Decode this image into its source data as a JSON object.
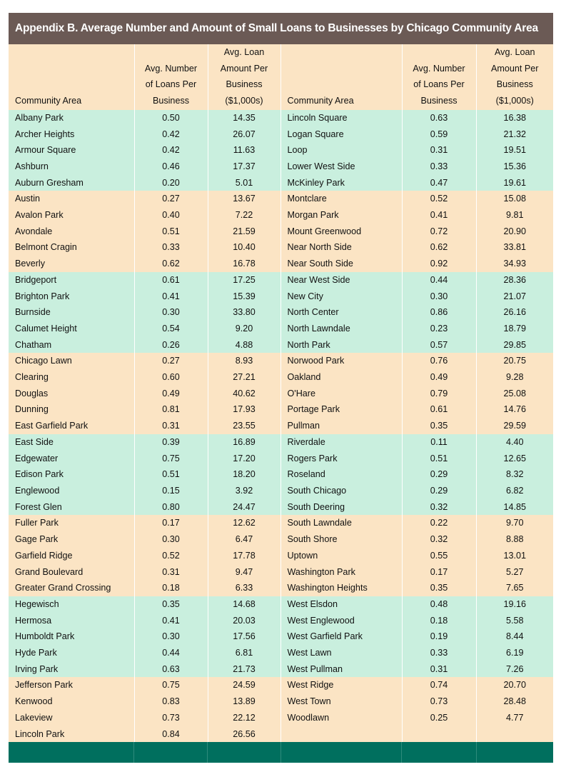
{
  "title": "Appendix B. Average Number and Amount of Small Loans to Businesses by Chicago Community Area",
  "headers": {
    "community_area": "Community Area",
    "avg_number": [
      "Avg. Number",
      "of Loans Per",
      "Business"
    ],
    "avg_amount": [
      "Avg. Loan",
      "Amount Per",
      "Business",
      "($1,000s)"
    ]
  },
  "colors": {
    "title_bg": "#6b5a55",
    "green_band": "#c9efde",
    "orange_band": "#fbe4c4",
    "footer": "#006f5e"
  },
  "rows": [
    {
      "band": "green",
      "l": [
        "Albany Park",
        "0.50",
        "14.35"
      ],
      "r": [
        "Lincoln Square",
        "0.63",
        "16.38"
      ]
    },
    {
      "band": "green",
      "l": [
        "Archer Heights",
        "0.42",
        "26.07"
      ],
      "r": [
        "Logan Square",
        "0.59",
        "21.32"
      ]
    },
    {
      "band": "green",
      "l": [
        "Armour Square",
        "0.42",
        "11.63"
      ],
      "r": [
        "Loop",
        "0.31",
        "19.51"
      ]
    },
    {
      "band": "green",
      "l": [
        "Ashburn",
        "0.46",
        "17.37"
      ],
      "r": [
        "Lower West Side",
        "0.33",
        "15.36"
      ]
    },
    {
      "band": "green",
      "l": [
        "Auburn Gresham",
        "0.20",
        "5.01"
      ],
      "r": [
        "McKinley Park",
        "0.47",
        "19.61"
      ]
    },
    {
      "band": "orange",
      "l": [
        "Austin",
        "0.27",
        "13.67"
      ],
      "r": [
        "Montclare",
        "0.52",
        "15.08"
      ]
    },
    {
      "band": "orange",
      "l": [
        "Avalon Park",
        "0.40",
        "7.22"
      ],
      "r": [
        "Morgan Park",
        "0.41",
        "9.81"
      ]
    },
    {
      "band": "orange",
      "l": [
        "Avondale",
        "0.51",
        "21.59"
      ],
      "r": [
        "Mount Greenwood",
        "0.72",
        "20.90"
      ]
    },
    {
      "band": "orange",
      "l": [
        "Belmont Cragin",
        "0.33",
        "10.40"
      ],
      "r": [
        "Near North Side",
        "0.62",
        "33.81"
      ]
    },
    {
      "band": "orange",
      "l": [
        "Beverly",
        "0.62",
        "16.78"
      ],
      "r": [
        "Near South Side",
        "0.92",
        "34.93"
      ]
    },
    {
      "band": "green",
      "l": [
        "Bridgeport",
        "0.61",
        "17.25"
      ],
      "r": [
        "Near West Side",
        "0.44",
        "28.36"
      ]
    },
    {
      "band": "green",
      "l": [
        "Brighton Park",
        "0.41",
        "15.39"
      ],
      "r": [
        "New City",
        "0.30",
        "21.07"
      ]
    },
    {
      "band": "green",
      "l": [
        "Burnside",
        "0.30",
        "33.80"
      ],
      "r": [
        "North Center",
        "0.86",
        "26.16"
      ]
    },
    {
      "band": "green",
      "l": [
        "Calumet Height",
        "0.54",
        "9.20"
      ],
      "r": [
        "North Lawndale",
        "0.23",
        "18.79"
      ]
    },
    {
      "band": "green",
      "l": [
        "Chatham",
        "0.26",
        "4.88"
      ],
      "r": [
        "North Park",
        "0.57",
        "29.85"
      ]
    },
    {
      "band": "orange",
      "l": [
        "Chicago Lawn",
        "0.27",
        "8.93"
      ],
      "r": [
        "Norwood Park",
        "0.76",
        "20.75"
      ]
    },
    {
      "band": "orange",
      "l": [
        "Clearing",
        "0.60",
        "27.21"
      ],
      "r": [
        "Oakland",
        "0.49",
        "9.28"
      ]
    },
    {
      "band": "orange",
      "l": [
        "Douglas",
        "0.49",
        "40.62"
      ],
      "r": [
        "O'Hare",
        "0.79",
        "25.08"
      ]
    },
    {
      "band": "orange",
      "l": [
        "Dunning",
        "0.81",
        "17.93"
      ],
      "r": [
        "Portage Park",
        "0.61",
        "14.76"
      ]
    },
    {
      "band": "orange",
      "l": [
        "East Garfield Park",
        "0.31",
        "23.55"
      ],
      "r": [
        "Pullman",
        "0.35",
        "29.59"
      ]
    },
    {
      "band": "green",
      "l": [
        "East Side",
        "0.39",
        "16.89"
      ],
      "r": [
        "Riverdale",
        "0.11",
        "4.40"
      ]
    },
    {
      "band": "green",
      "l": [
        "Edgewater",
        "0.75",
        "17.20"
      ],
      "r": [
        "Rogers Park",
        "0.51",
        "12.65"
      ]
    },
    {
      "band": "green",
      "l": [
        "Edison Park",
        "0.51",
        "18.20"
      ],
      "r": [
        "Roseland",
        "0.29",
        "8.32"
      ]
    },
    {
      "band": "green",
      "l": [
        "Englewood",
        "0.15",
        "3.92"
      ],
      "r": [
        "South Chicago",
        "0.29",
        "6.82"
      ]
    },
    {
      "band": "green",
      "l": [
        "Forest Glen",
        "0.80",
        "24.47"
      ],
      "r": [
        "South Deering",
        "0.32",
        "14.85"
      ]
    },
    {
      "band": "orange",
      "l": [
        "Fuller Park",
        "0.17",
        "12.62"
      ],
      "r": [
        "South Lawndale",
        "0.22",
        "9.70"
      ]
    },
    {
      "band": "orange",
      "l": [
        "Gage Park",
        "0.30",
        "6.47"
      ],
      "r": [
        "South Shore",
        "0.32",
        "8.88"
      ]
    },
    {
      "band": "orange",
      "l": [
        "Garfield Ridge",
        "0.52",
        "17.78"
      ],
      "r": [
        "Uptown",
        "0.55",
        "13.01"
      ]
    },
    {
      "band": "orange",
      "l": [
        "Grand Boulevard",
        "0.31",
        "9.47"
      ],
      "r": [
        "Washington Park",
        "0.17",
        "5.27"
      ]
    },
    {
      "band": "orange",
      "l": [
        "Greater Grand Crossing",
        "0.18",
        "6.33"
      ],
      "r": [
        "Washington Heights",
        "0.35",
        "7.65"
      ]
    },
    {
      "band": "green",
      "l": [
        "Hegewisch",
        "0.35",
        "14.68"
      ],
      "r": [
        "West Elsdon",
        "0.48",
        "19.16"
      ]
    },
    {
      "band": "green",
      "l": [
        "Hermosa",
        "0.41",
        "20.03"
      ],
      "r": [
        "West Englewood",
        "0.18",
        "5.58"
      ]
    },
    {
      "band": "green",
      "l": [
        "Humboldt Park",
        "0.30",
        "17.56"
      ],
      "r": [
        "West Garfield Park",
        "0.19",
        "8.44"
      ]
    },
    {
      "band": "green",
      "l": [
        "Hyde Park",
        "0.44",
        "6.81"
      ],
      "r": [
        "West Lawn",
        "0.33",
        "6.19"
      ]
    },
    {
      "band": "green",
      "l": [
        "Irving Park",
        "0.63",
        "21.73"
      ],
      "r": [
        "West Pullman",
        "0.31",
        "7.26"
      ]
    },
    {
      "band": "orange",
      "l": [
        "Jefferson Park",
        "0.75",
        "24.59"
      ],
      "r": [
        "West Ridge",
        "0.74",
        "20.70"
      ]
    },
    {
      "band": "orange",
      "l": [
        "Kenwood",
        "0.83",
        "13.89"
      ],
      "r": [
        "West Town",
        "0.73",
        "28.48"
      ]
    },
    {
      "band": "orange",
      "l": [
        "Lakeview",
        "0.73",
        "22.12"
      ],
      "r": [
        "Woodlawn",
        "0.25",
        "4.77"
      ]
    },
    {
      "band": "orange",
      "l": [
        "Lincoln Park",
        "0.84",
        "26.56"
      ],
      "r": [
        "",
        "",
        ""
      ]
    }
  ]
}
